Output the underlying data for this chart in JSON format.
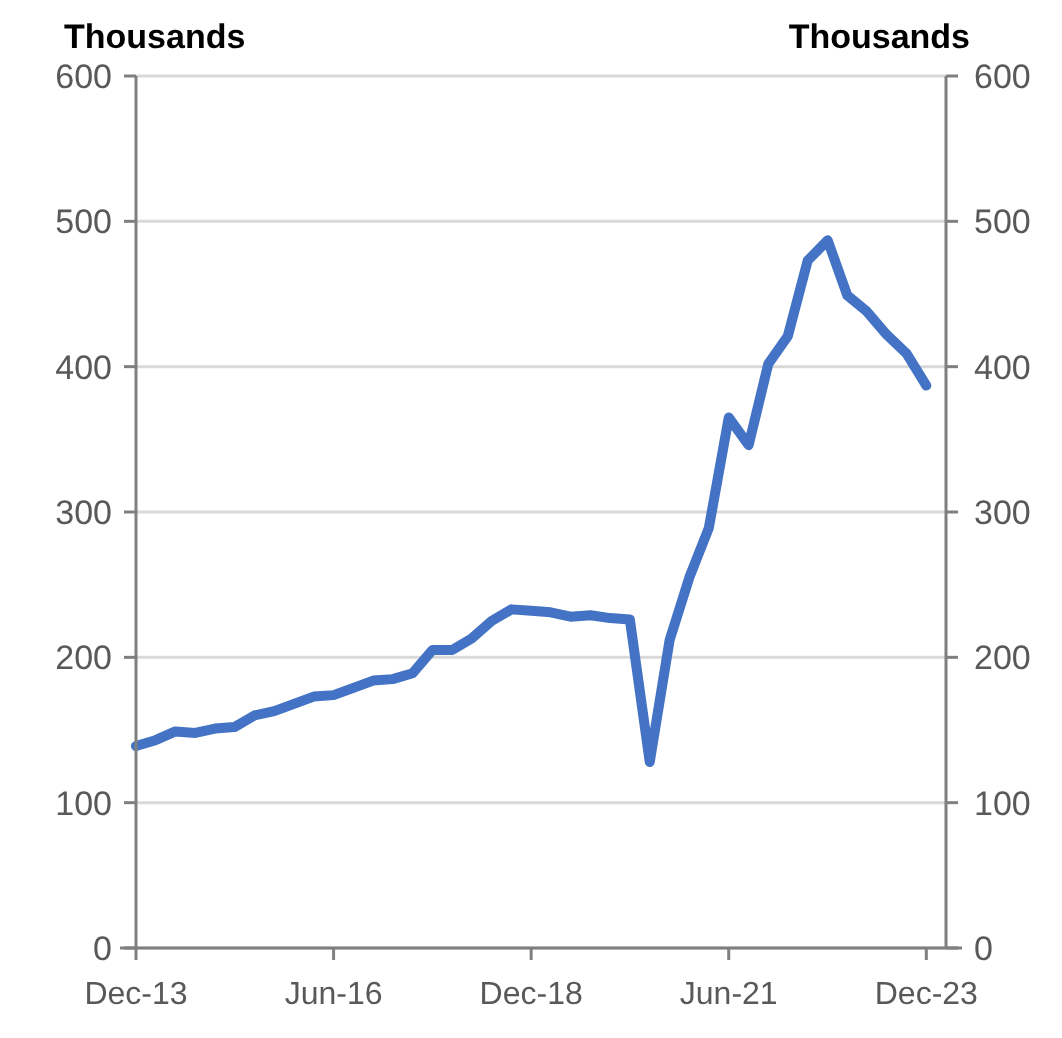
{
  "chart_data": {
    "type": "line",
    "ylabel": "Thousands",
    "y2label": "Thousands",
    "x": [
      "2013-12",
      "2014-03",
      "2014-06",
      "2014-09",
      "2014-12",
      "2015-03",
      "2015-06",
      "2015-09",
      "2015-12",
      "2016-03",
      "2016-06",
      "2016-09",
      "2016-12",
      "2017-03",
      "2017-06",
      "2017-09",
      "2017-12",
      "2018-03",
      "2018-06",
      "2018-09",
      "2018-12",
      "2019-03",
      "2019-06",
      "2019-09",
      "2019-12",
      "2020-03",
      "2020-06",
      "2020-09",
      "2020-12",
      "2021-03",
      "2021-06",
      "2021-09",
      "2021-12",
      "2022-03",
      "2022-06",
      "2022-09",
      "2022-12",
      "2023-03",
      "2023-06",
      "2023-09",
      "2023-12"
    ],
    "series": [
      {
        "color": "#4472c4",
        "values": [
          139,
          143,
          149,
          148,
          151,
          152,
          160,
          163,
          168,
          173,
          174,
          179,
          184,
          185,
          189,
          205,
          205,
          213,
          225,
          233,
          232,
          231,
          228,
          229,
          227,
          226,
          128,
          212,
          255,
          289,
          365,
          346,
          402,
          421,
          473,
          487,
          449,
          438,
          422,
          409,
          387
        ]
      }
    ],
    "xlim": [
      "2013-12",
      "2024-03"
    ],
    "xticks": [
      {
        "value": "2013-12",
        "label": "Dec-13"
      },
      {
        "value": "2016-06",
        "label": "Jun-16"
      },
      {
        "value": "2018-12",
        "label": "Dec-18"
      },
      {
        "value": "2021-06",
        "label": "Jun-21"
      },
      {
        "value": "2023-12",
        "label": "Dec-23"
      }
    ],
    "ylim": [
      0,
      600
    ],
    "yticks": [
      0,
      100,
      200,
      300,
      400,
      500,
      600
    ],
    "y2lim": [
      0,
      600
    ],
    "y2ticks": [
      0,
      100,
      200,
      300,
      400,
      500,
      600
    ],
    "grid": "y",
    "marker": "none",
    "line_style": "solid"
  }
}
